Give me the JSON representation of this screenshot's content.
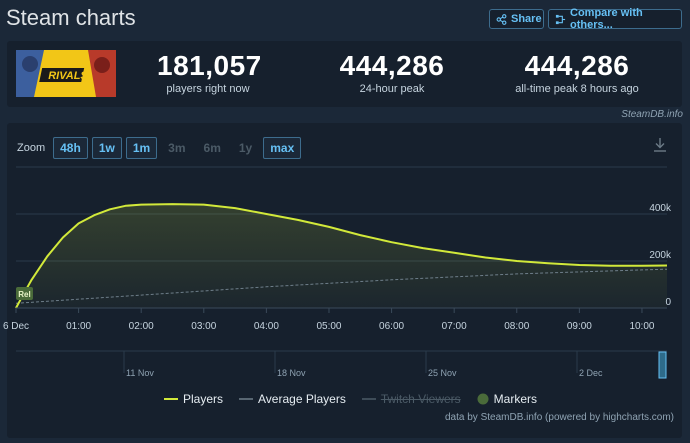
{
  "header": {
    "title": "Steam charts",
    "share_label": "Share",
    "compare_label": "Compare with others..."
  },
  "game": {
    "logo_text": "RIVALS"
  },
  "stats": [
    {
      "value": "181,057",
      "label": "players right now"
    },
    {
      "value": "444,286",
      "label": "24-hour peak"
    },
    {
      "value": "444,286",
      "label": "all-time peak 8 hours ago"
    }
  ],
  "credit_top": "SteamDB.info",
  "zoom": {
    "label": "Zoom",
    "options": [
      {
        "label": "48h",
        "active": true
      },
      {
        "label": "1w",
        "active": true
      },
      {
        "label": "1m",
        "active": true
      },
      {
        "label": "3m",
        "active": false
      },
      {
        "label": "6m",
        "active": false
      },
      {
        "label": "1y",
        "active": false
      },
      {
        "label": "max",
        "active": true
      }
    ]
  },
  "chart_data": {
    "type": "line",
    "x_ticks": [
      "6 Dec",
      "01:00",
      "02:00",
      "03:00",
      "04:00",
      "05:00",
      "06:00",
      "07:00",
      "08:00",
      "09:00",
      "10:00"
    ],
    "y_ticks": [
      "0",
      "200k",
      "400k"
    ],
    "ylim": [
      0,
      600000
    ],
    "series": [
      {
        "name": "Players",
        "color": "#d2e93a",
        "x": [
          0,
          0.1,
          0.25,
          0.5,
          0.75,
          1.0,
          1.25,
          1.5,
          1.75,
          2.0,
          2.5,
          3.0,
          3.5,
          4.0,
          4.5,
          5.0,
          5.5,
          6.0,
          6.5,
          7.0,
          7.5,
          8.0,
          8.5,
          9.0,
          9.5,
          10.0,
          10.4
        ],
        "values": [
          0,
          50000,
          120000,
          220000,
          300000,
          360000,
          395000,
          420000,
          435000,
          440000,
          442000,
          440000,
          425000,
          400000,
          375000,
          345000,
          310000,
          280000,
          255000,
          235000,
          215000,
          200000,
          190000,
          183000,
          180000,
          180000,
          181057
        ]
      },
      {
        "name": "Average Players",
        "color": "#6e7e8a",
        "x": [
          0,
          2,
          4,
          6,
          8,
          10,
          10.4
        ],
        "values": [
          20000,
          55000,
          90000,
          120000,
          145000,
          162000,
          165000
        ]
      }
    ],
    "navigator_labels": [
      "11 Nov",
      "18 Nov",
      "25 Nov",
      "2 Dec"
    ],
    "legend": [
      "Players",
      "Average Players",
      "Twitch Viewers",
      "Markers"
    ],
    "marker_label": "Rel"
  },
  "credit_bottom": "data by SteamDB.info (powered by highcharts.com)"
}
